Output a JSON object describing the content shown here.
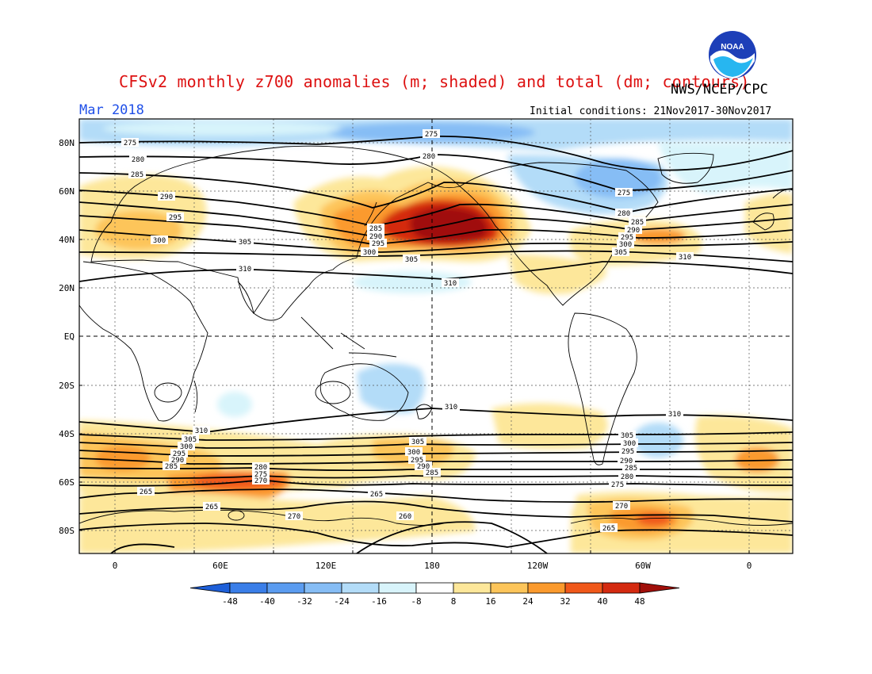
{
  "title": "CFSv2 monthly z700 anomalies (m; shaded) and total (dm; contours)",
  "agency": "NWS/NCEP/CPC",
  "logo_text": "NOAA",
  "period": "Mar 2018",
  "initial_conditions": "Initial conditions: 21Nov2017-30Nov2017",
  "lat_ticks": [
    "80N",
    "60N",
    "40N",
    "20N",
    "EQ",
    "20S",
    "40S",
    "60S",
    "80S"
  ],
  "lon_ticks": [
    "0",
    "60E",
    "120E",
    "180",
    "120W",
    "60W",
    "0"
  ],
  "colorbar": {
    "labels": [
      "-48",
      "-40",
      "-32",
      "-24",
      "-16",
      "-8",
      "8",
      "16",
      "24",
      "32",
      "40",
      "48"
    ],
    "colors": [
      "#1e5fd8",
      "#3a7ee8",
      "#5b9cf0",
      "#86bdf5",
      "#b3dcf8",
      "#d8f4fb",
      "#ffffff",
      "#fde79a",
      "#fdc55a",
      "#fb9a2d",
      "#f0581a",
      "#d42a10",
      "#a00f0a"
    ]
  },
  "contour_labels": [
    "275",
    "280",
    "285",
    "290",
    "295",
    "300",
    "305",
    "310",
    "265",
    "270",
    "260"
  ],
  "colors": {
    "title": "#dd1111",
    "period": "#1f4fe8",
    "land_outline": "#000000"
  }
}
